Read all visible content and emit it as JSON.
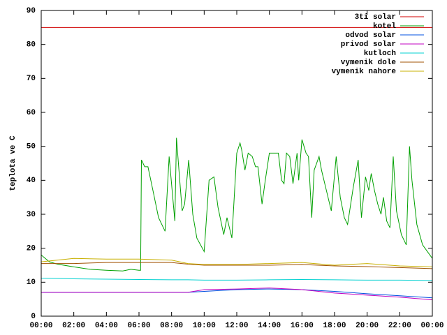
{
  "chart_data": {
    "type": "line",
    "ylabel": "teplota ve C",
    "xlim": [
      0,
      24
    ],
    "xticks": [
      {
        "value": 0,
        "label": "00:00"
      },
      {
        "value": 2,
        "label": "02:00"
      },
      {
        "value": 4,
        "label": "04:00"
      },
      {
        "value": 6,
        "label": "06:00"
      },
      {
        "value": 8,
        "label": "08:00"
      },
      {
        "value": 10,
        "label": "10:00"
      },
      {
        "value": 12,
        "label": "12:00"
      },
      {
        "value": 14,
        "label": "14:00"
      },
      {
        "value": 16,
        "label": "16:00"
      },
      {
        "value": 18,
        "label": "18:00"
      },
      {
        "value": 20,
        "label": "20:00"
      },
      {
        "value": 22,
        "label": "22:00"
      },
      {
        "value": 24,
        "label": "00:00"
      }
    ],
    "ylim": [
      0,
      90
    ],
    "yticks": [
      0,
      10,
      20,
      30,
      40,
      50,
      60,
      70,
      80,
      90
    ],
    "legend": "top-right",
    "series": [
      {
        "name": "3ti solar",
        "color": "#d00000",
        "x": [
          0,
          24
        ],
        "values": [
          85,
          85
        ]
      },
      {
        "name": "kotel",
        "color": "#00a000",
        "x": [
          0,
          0.5,
          1,
          2,
          3,
          4,
          5,
          5.5,
          6,
          6.1,
          6.15,
          6.35,
          6.55,
          6.9,
          7.2,
          7.6,
          7.85,
          8.2,
          8.3,
          8.5,
          8.65,
          8.8,
          9.05,
          9.3,
          9.55,
          10.0,
          10.3,
          10.6,
          10.85,
          11.2,
          11.4,
          11.7,
          12.0,
          12.2,
          12.3,
          12.5,
          12.7,
          12.95,
          13.15,
          13.3,
          13.55,
          13.75,
          14.0,
          14.55,
          14.75,
          14.9,
          15.05,
          15.25,
          15.45,
          15.7,
          15.8,
          16.0,
          16.25,
          16.4,
          16.6,
          16.75,
          17.05,
          17.2,
          17.5,
          17.8,
          18.1,
          18.35,
          18.6,
          18.8,
          19.15,
          19.45,
          19.65,
          19.9,
          20.1,
          20.25,
          20.45,
          20.65,
          20.85,
          21.0,
          21.2,
          21.4,
          21.6,
          21.8,
          22.1,
          22.4,
          22.6,
          22.75,
          23.05,
          23.4,
          23.7,
          24
        ],
        "values": [
          18,
          16,
          15.3,
          14.5,
          13.8,
          13.5,
          13.3,
          13.8,
          13.5,
          13.5,
          46,
          44,
          44,
          36,
          29,
          25,
          47,
          28,
          52.5,
          40,
          31,
          33,
          46,
          30,
          23,
          19,
          40,
          41,
          32,
          24,
          29,
          23,
          48,
          51,
          49,
          43,
          48,
          47,
          44,
          44,
          33,
          40,
          48,
          48,
          40,
          39,
          48,
          47,
          39,
          48,
          40,
          52,
          48,
          47,
          29,
          43,
          47,
          43,
          37,
          31,
          47,
          35,
          29,
          27,
          38,
          46,
          29,
          41,
          37,
          42,
          37,
          33,
          30,
          35,
          28,
          26,
          47,
          31,
          24,
          21,
          50,
          40,
          27,
          21,
          19,
          17
        ]
      },
      {
        "name": "odvod solar",
        "color": "#0050e0",
        "x": [
          0,
          2,
          4,
          6,
          8,
          9,
          10,
          12,
          14,
          16,
          18,
          20,
          22,
          24
        ],
        "values": [
          7,
          7,
          7,
          7,
          7,
          7,
          7.3,
          7.8,
          8,
          7.8,
          7.3,
          6.6,
          6,
          5.4
        ]
      },
      {
        "name": "privod solar",
        "color": "#c000c0",
        "x": [
          0,
          2,
          4,
          6,
          8,
          9,
          10,
          12,
          14,
          16,
          18,
          20,
          22,
          24
        ],
        "values": [
          7,
          7,
          7,
          7,
          7,
          7,
          7.8,
          8,
          8.3,
          7.8,
          6.8,
          6.2,
          5.6,
          4.8
        ]
      },
      {
        "name": "kutloch",
        "color": "#00d0d0",
        "x": [
          0,
          2,
          4,
          6,
          8,
          9,
          10,
          12,
          14,
          16,
          18,
          20,
          22,
          24
        ],
        "values": [
          11.2,
          11,
          10.9,
          10.8,
          10.7,
          10.7,
          10.6,
          10.6,
          10.7,
          10.8,
          10.7,
          10.6,
          10.6,
          10.5
        ]
      },
      {
        "name": "vymenik dole",
        "color": "#a05000",
        "x": [
          0,
          2,
          4,
          6,
          8,
          9,
          10,
          12,
          14,
          16,
          18,
          20,
          22,
          24
        ],
        "values": [
          15.5,
          15.5,
          15.8,
          15.8,
          15.8,
          15.3,
          15,
          15,
          15,
          15.2,
          14.8,
          14.6,
          14.3,
          14
        ]
      },
      {
        "name": "vymenik nahore",
        "color": "#c8b000",
        "x": [
          0,
          2,
          4,
          6,
          8,
          9,
          10,
          12,
          14,
          16,
          18,
          20,
          22,
          24
        ],
        "values": [
          16,
          17,
          16.8,
          16.8,
          16.5,
          15.5,
          15.2,
          15.2,
          15.5,
          15.8,
          15,
          15.5,
          14.8,
          14.5
        ]
      }
    ]
  }
}
